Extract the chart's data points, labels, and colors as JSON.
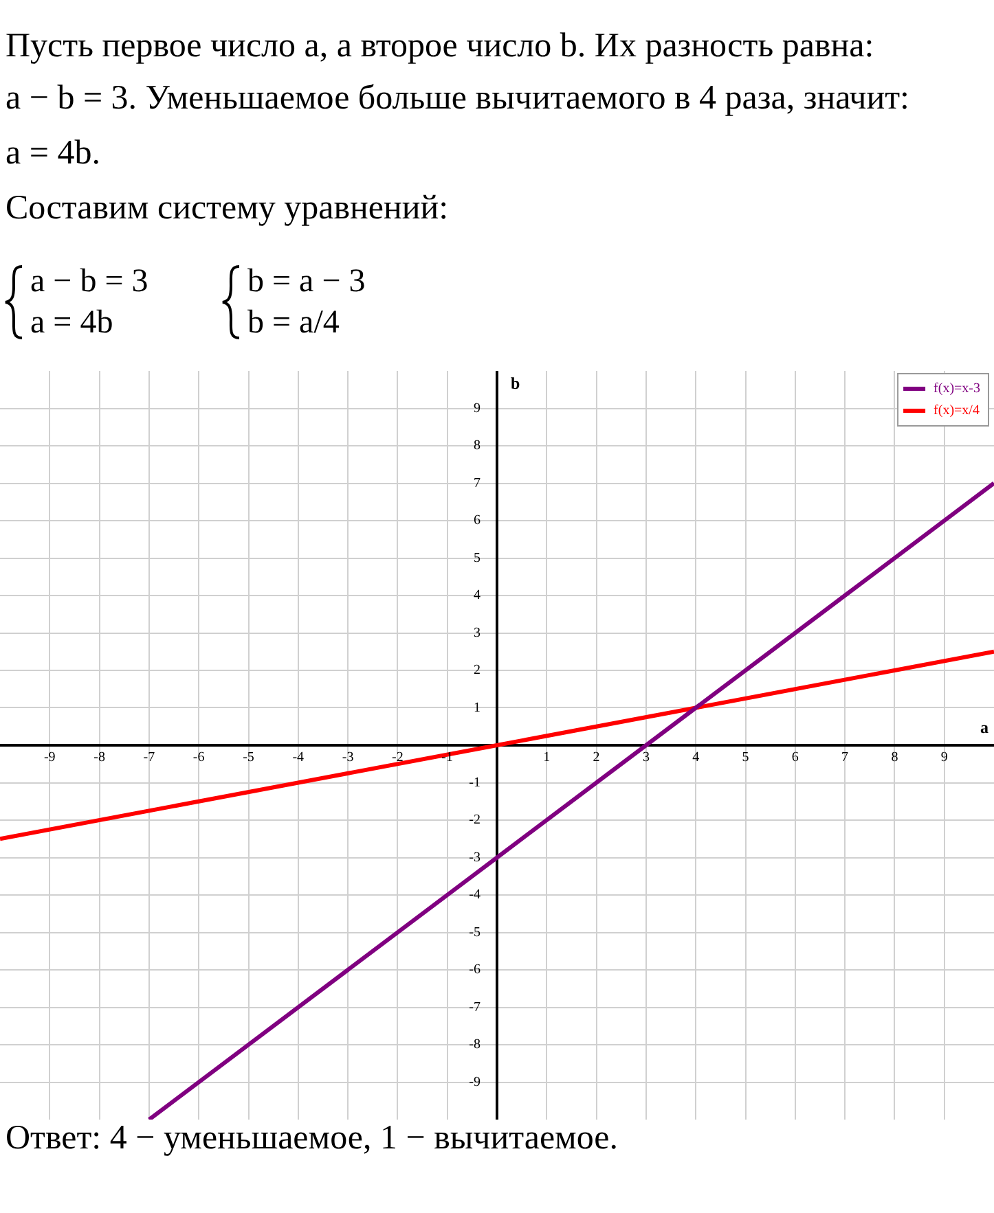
{
  "chart_data": {
    "type": "line",
    "xlabel": "a",
    "ylabel": "b",
    "annotations": [
      "Пусть первое число a, а второе число b. Их разность равна:",
      "a − b = 3. Уменьшаемое больше вычитаемого в 4 раза, значит:",
      "a = 4b.",
      "Составим систему уравнений:",
      "a − b = 3",
      "a = 4b",
      "b = a − 3",
      "b = a/4",
      "Ответ: 4 − уменьшаемое, 1 − вычитаемое."
    ],
    "series": [
      {
        "name": "f(x)=x-3",
        "color": "#800080",
        "x": [
          -7,
          -3,
          0,
          3,
          4,
          7,
          10
        ],
        "values": [
          -10,
          -6,
          -3,
          0,
          1,
          4,
          7
        ]
      },
      {
        "name": "f(x)=x/4",
        "color": "#ff0000",
        "x": [
          -10,
          -4,
          0,
          4,
          8,
          10
        ],
        "values": [
          -2.5,
          -1,
          0,
          1,
          2,
          2.5
        ]
      }
    ],
    "xlim": [
      -10,
      10
    ],
    "ylim": [
      -10,
      10
    ],
    "xticks": [
      -9,
      -8,
      -7,
      -6,
      -5,
      -4,
      -3,
      -2,
      -1,
      1,
      2,
      3,
      4,
      5,
      6,
      7,
      8,
      9
    ],
    "yticks": [
      -9,
      -8,
      -7,
      -6,
      -5,
      -4,
      -3,
      -2,
      -1,
      1,
      2,
      3,
      4,
      5,
      6,
      7,
      8,
      9
    ],
    "grid": true,
    "legend": "top right"
  }
}
